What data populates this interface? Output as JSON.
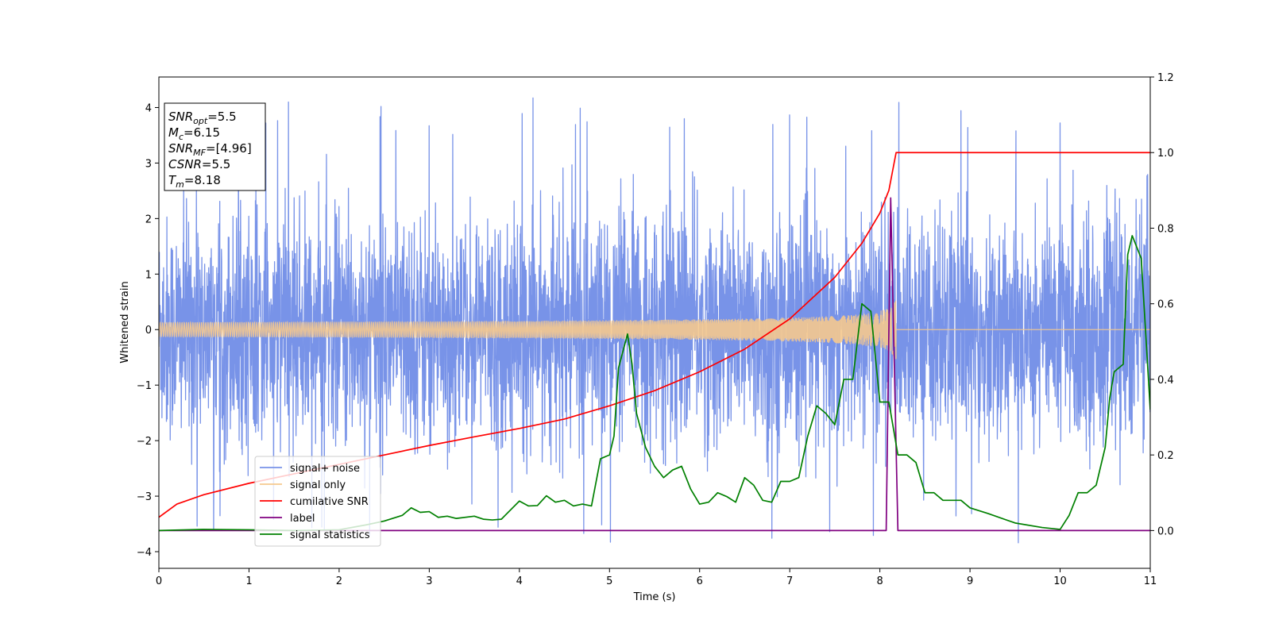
{
  "chart_data": {
    "type": "line",
    "xlabel": "Time (s)",
    "ylabel_left": "Whitened strain",
    "ylabel_right": "",
    "xlim": [
      0,
      11
    ],
    "ylim_left": [
      -4.3,
      4.55
    ],
    "ylim_right": [
      -0.1,
      1.2
    ],
    "x_ticks": [
      "0",
      "1",
      "2",
      "3",
      "4",
      "5",
      "6",
      "7",
      "8",
      "9",
      "10",
      "11"
    ],
    "y_ticks_left": [
      "−4",
      "−3",
      "−2",
      "−1",
      "0",
      "1",
      "2",
      "3",
      "4"
    ],
    "y_ticks_right": [
      "0.0",
      "0.2",
      "0.4",
      "0.6",
      "0.8",
      "1.0",
      "1.2"
    ],
    "grid": false,
    "legend": {
      "position": "lower-left",
      "entries": [
        {
          "label": "signal+ noise",
          "color": "#7893e8"
        },
        {
          "label": "signal only",
          "color": "#f5c98e"
        },
        {
          "label": "cumilative SNR",
          "color": "#ff0000"
        },
        {
          "label": "label",
          "color": "#800080"
        },
        {
          "label": "signal statistics",
          "color": "#008000"
        }
      ]
    },
    "info_box": {
      "lines": [
        {
          "main": "SNR",
          "sub": "opt",
          "value": "=5.5"
        },
        {
          "main": "M",
          "sub": "c",
          "value": "=6.15"
        },
        {
          "main": "SNR",
          "sub": "MF",
          "value": "=[4.96]"
        },
        {
          "main": "CSNR",
          "sub": "",
          "value": "=5.5"
        },
        {
          "main": "T",
          "sub": "m",
          "value": "=8.18"
        }
      ]
    },
    "series": [
      {
        "name": "signal+ noise",
        "axis": "left",
        "color": "#7893e8",
        "kind": "noise",
        "x_range": [
          0,
          11
        ],
        "sigma": 1.0,
        "peak_min": -3.9,
        "peak_max": 4.2
      },
      {
        "name": "signal only",
        "axis": "left",
        "color": "#f5c98e",
        "kind": "chirp",
        "x_range": [
          0,
          8.18
        ],
        "merger_time": 8.18,
        "peak_amplitude": 0.6,
        "post_merger_value": 0
      },
      {
        "name": "cumilative SNR",
        "axis": "right",
        "color": "#ff0000",
        "x": [
          0,
          0.2,
          0.5,
          1,
          1.5,
          2,
          2.5,
          3,
          3.5,
          4,
          4.5,
          5,
          5.5,
          6,
          6.5,
          7,
          7.5,
          7.8,
          8.0,
          8.1,
          8.18,
          11
        ],
        "y": [
          0.035,
          0.07,
          0.095,
          0.125,
          0.15,
          0.175,
          0.2,
          0.225,
          0.248,
          0.27,
          0.295,
          0.33,
          0.37,
          0.42,
          0.48,
          0.56,
          0.67,
          0.76,
          0.84,
          0.9,
          1.0,
          1.0
        ]
      },
      {
        "name": "label",
        "axis": "right",
        "color": "#800080",
        "x": [
          0,
          8.07,
          8.12,
          8.2,
          11
        ],
        "y": [
          0,
          0,
          0.88,
          0,
          0
        ]
      },
      {
        "name": "signal statistics",
        "axis": "right",
        "color": "#008000",
        "x": [
          0,
          0.5,
          1,
          1.5,
          2,
          2.3,
          2.5,
          2.7,
          2.8,
          2.9,
          3.0,
          3.1,
          3.2,
          3.3,
          3.5,
          3.6,
          3.7,
          3.8,
          4.0,
          4.1,
          4.2,
          4.3,
          4.4,
          4.5,
          4.6,
          4.7,
          4.8,
          4.9,
          5.0,
          5.05,
          5.1,
          5.2,
          5.25,
          5.3,
          5.4,
          5.5,
          5.6,
          5.7,
          5.8,
          5.9,
          6.0,
          6.1,
          6.2,
          6.3,
          6.4,
          6.5,
          6.6,
          6.7,
          6.8,
          6.9,
          7.0,
          7.1,
          7.2,
          7.3,
          7.4,
          7.5,
          7.6,
          7.7,
          7.8,
          7.9,
          8.0,
          8.1,
          8.2,
          8.3,
          8.4,
          8.5,
          8.6,
          8.7,
          8.8,
          8.9,
          9.0,
          9.2,
          9.5,
          9.8,
          10.0,
          10.1,
          10.2,
          10.3,
          10.4,
          10.5,
          10.55,
          10.6,
          10.7,
          10.75,
          10.8,
          10.9,
          11.0
        ],
        "y": [
          0,
          0.003,
          0.002,
          0.0,
          0.002,
          0.015,
          0.025,
          0.04,
          0.06,
          0.048,
          0.05,
          0.035,
          0.038,
          0.032,
          0.038,
          0.03,
          0.028,
          0.03,
          0.078,
          0.065,
          0.066,
          0.092,
          0.075,
          0.08,
          0.065,
          0.07,
          0.065,
          0.19,
          0.2,
          0.25,
          0.43,
          0.52,
          0.44,
          0.31,
          0.22,
          0.17,
          0.14,
          0.16,
          0.17,
          0.11,
          0.07,
          0.075,
          0.1,
          0.09,
          0.075,
          0.14,
          0.12,
          0.08,
          0.075,
          0.13,
          0.13,
          0.14,
          0.25,
          0.33,
          0.31,
          0.28,
          0.4,
          0.4,
          0.6,
          0.58,
          0.34,
          0.34,
          0.2,
          0.2,
          0.18,
          0.1,
          0.1,
          0.08,
          0.08,
          0.08,
          0.06,
          0.045,
          0.02,
          0.008,
          0.003,
          0.04,
          0.1,
          0.1,
          0.12,
          0.22,
          0.35,
          0.42,
          0.44,
          0.73,
          0.78,
          0.72,
          0.32
        ]
      }
    ]
  }
}
